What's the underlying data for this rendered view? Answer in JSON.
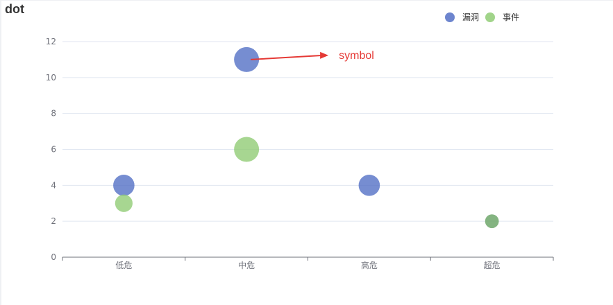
{
  "page": {
    "title": "dot"
  },
  "chart_data": {
    "type": "scatter",
    "categories": [
      "低危",
      "中危",
      "高危",
      "超危"
    ],
    "series": [
      {
        "name": "漏洞",
        "color": "#5470c6",
        "values": [
          4,
          11,
          4,
          null
        ]
      },
      {
        "name": "事件",
        "color": "#91cc75",
        "values": [
          3,
          6,
          null,
          2
        ]
      }
    ],
    "ylim": [
      0,
      12
    ],
    "yticks": [
      0,
      2,
      4,
      6,
      8,
      10,
      12
    ],
    "grid": true,
    "legend_position": "top-right",
    "annotation": {
      "text": "symbol",
      "color": "#e53935",
      "target": {
        "category": "中危",
        "value": 11
      }
    },
    "overlap_color": "#6fa76b"
  }
}
